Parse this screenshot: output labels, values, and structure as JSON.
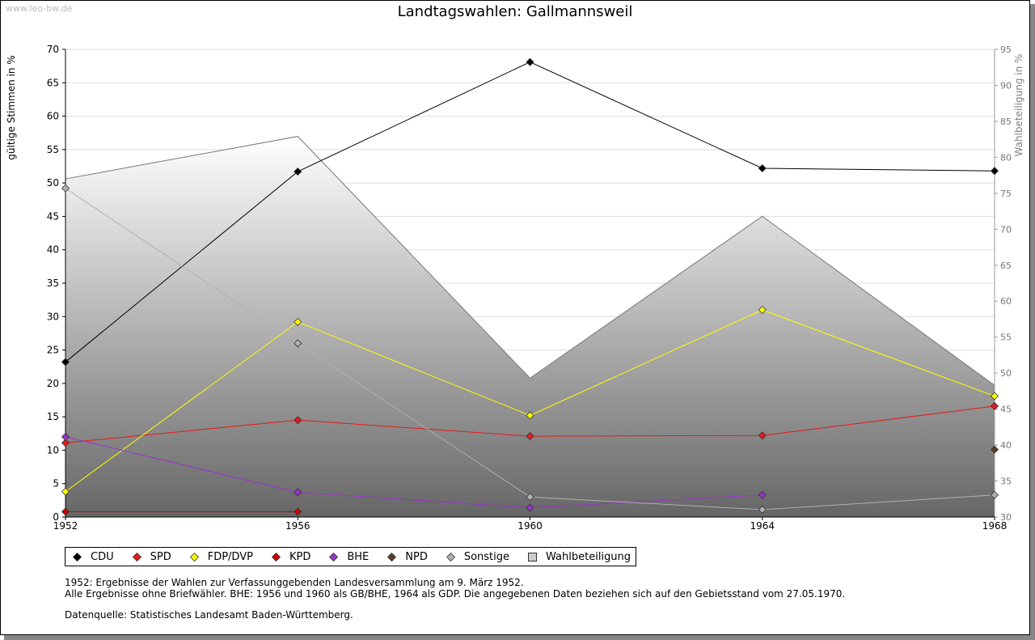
{
  "page": {
    "watermark": "www.leo-bw.de",
    "notes": [
      "1952: Ergebnisse der Wahlen zur Verfassunggebenden Landesversammlung am 9. März 1952.",
      "Alle Ergebnisse ohne Briefwähler. BHE: 1956 und 1960 als GB/BHE, 1964 als GDP. Die angegebenen Daten beziehen sich auf den Gebietsstand vom 27.05.1970."
    ],
    "source": "Datenquelle: Statistisches Landesamt Baden-Württemberg."
  },
  "chart_data": {
    "type": "line",
    "title": "Landtagswahlen: Gallmannsweil",
    "ylabel": "gültige Stimmen in %",
    "y2label": "Wahlbeteiligung in %",
    "x": [
      1952,
      1956,
      1960,
      1964,
      1968
    ],
    "xticks": [
      "1952",
      "1956",
      "1960",
      "1964",
      "1968"
    ],
    "ylim": [
      0,
      70
    ],
    "yticks": [
      0,
      5,
      10,
      15,
      20,
      25,
      30,
      35,
      40,
      45,
      50,
      55,
      60,
      65,
      70
    ],
    "y2lim": [
      30,
      95
    ],
    "y2ticks": [
      30,
      35,
      40,
      45,
      50,
      55,
      60,
      65,
      70,
      75,
      80,
      85,
      90,
      95
    ],
    "grid": true,
    "legend_position": "bottom",
    "series": [
      {
        "name": "CDU",
        "color": "#000000",
        "values": [
          23.2,
          51.7,
          68.1,
          52.2,
          51.8
        ]
      },
      {
        "name": "SPD",
        "color": "#e41a1c",
        "values": [
          11.1,
          14.5,
          12.1,
          12.2,
          16.6
        ]
      },
      {
        "name": "FDP/DVP",
        "color": "#ffff00",
        "values": [
          3.8,
          29.2,
          15.2,
          31.0,
          18.1
        ]
      },
      {
        "name": "KPD",
        "color": "#cc0000",
        "values": [
          0.8,
          0.8,
          null,
          null,
          null
        ]
      },
      {
        "name": "BHE",
        "color": "#9933cc",
        "values": [
          12.0,
          3.7,
          1.4,
          3.3,
          null
        ]
      },
      {
        "name": "NPD",
        "color": "#5c3d2e",
        "values": [
          null,
          null,
          null,
          null,
          10.1
        ]
      },
      {
        "name": "Sonstige",
        "color": "#b0b0b0",
        "values": [
          49.2,
          26.0,
          3.0,
          1.1,
          3.3
        ]
      }
    ],
    "area_series": {
      "name": "Wahlbeteiligung",
      "axis": "right",
      "values": [
        77.0,
        82.9,
        49.3,
        71.8,
        48.3
      ]
    }
  }
}
